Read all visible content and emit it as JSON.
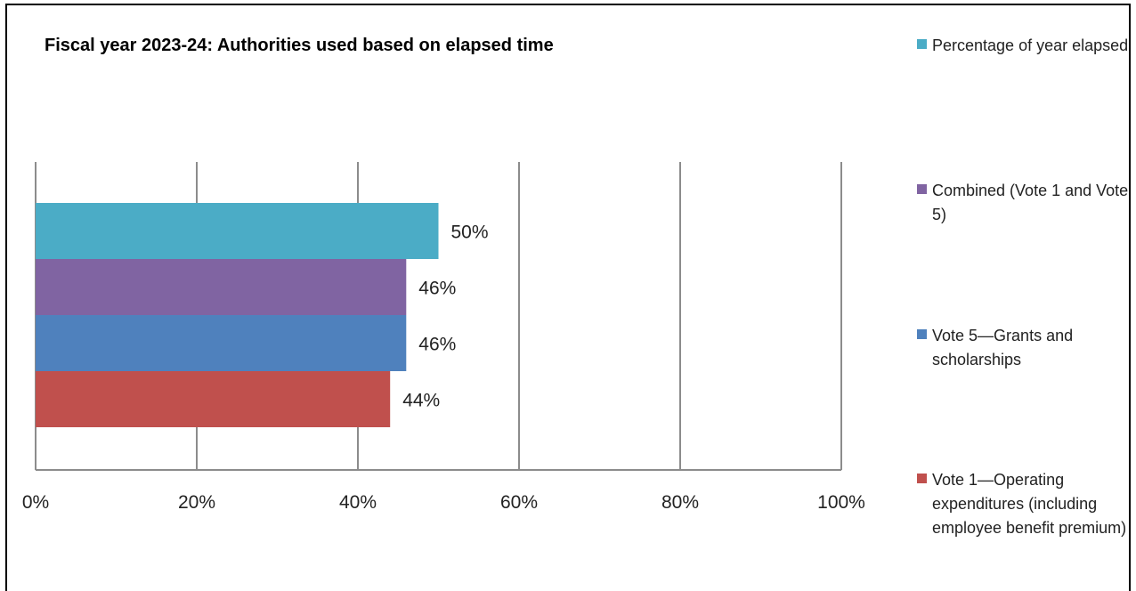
{
  "chart_data": {
    "type": "bar",
    "orientation": "horizontal",
    "title": "Fiscal year 2023-24: Authorities used based on elapsed time",
    "categories": [
      "Percentage of year elapsed",
      "Combined (Vote 1 and Vote 5)",
      "Vote 5—Grants and scholarships",
      "Vote 1—Operating expenditures (including employee benefit premium)"
    ],
    "values": [
      50,
      46,
      46,
      44
    ],
    "data_labels": [
      "50%",
      "46%",
      "46%",
      "44%"
    ],
    "colors": [
      "#4BACC6",
      "#8064A2",
      "#4F81BD",
      "#C0504D"
    ],
    "xlim": [
      0,
      100
    ],
    "x_ticks": [
      0,
      20,
      40,
      60,
      80,
      100
    ],
    "x_tick_labels": [
      "0%",
      "20%",
      "40%",
      "60%",
      "80%",
      "100%"
    ],
    "grid": true,
    "legend_position": "right"
  },
  "legend": [
    {
      "label": "Percentage of year elapsed",
      "color": "#4BACC6"
    },
    {
      "label": "Combined (Vote 1 and Vote 5)",
      "color": "#8064A2"
    },
    {
      "label": "Vote 5—Grants and scholarships",
      "color": "#4F81BD"
    },
    {
      "label": "Vote 1—Operating expenditures (including employee benefit premium)",
      "color": "#C0504D"
    }
  ]
}
